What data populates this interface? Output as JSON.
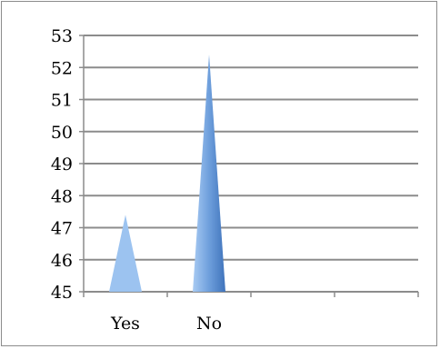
{
  "chart_data": {
    "type": "area",
    "title": "",
    "xlabel": "",
    "ylabel": "",
    "categories": [
      "Yes",
      "No",
      "",
      ""
    ],
    "values": [
      47.4,
      52.4,
      null,
      null
    ],
    "ylim": [
      45,
      53
    ],
    "yticks": [
      "45",
      "46",
      "47",
      "48",
      "49",
      "50",
      "51",
      "52",
      "53"
    ],
    "grid": true,
    "legend": "none",
    "colors": {
      "spike_light": "#9cc3f0",
      "spike_dark": "#4a7fc8",
      "gridline": "#8c8c8c",
      "frame": "#8c8c8c"
    }
  }
}
